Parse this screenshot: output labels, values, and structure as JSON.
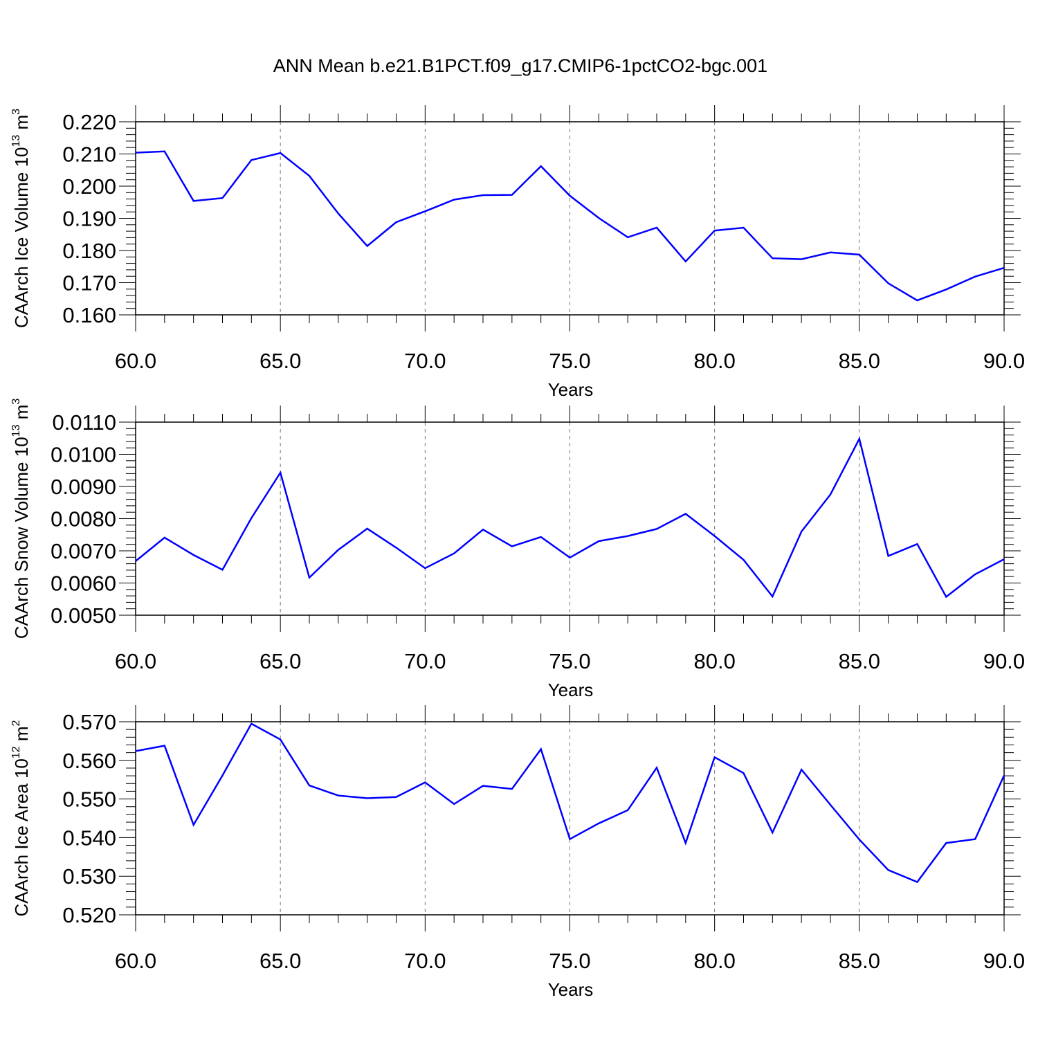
{
  "title": "ANN Mean b.e21.B1PCT.f09_g17.CMIP6-1pctCO2-bgc.001",
  "colors": {
    "line": "#0000ff",
    "grid": "#777777"
  },
  "chart_data": [
    {
      "type": "line",
      "xlabel": "Years",
      "ylabel": {
        "text": "CAArch Ice Volume 10",
        "exp": "13",
        "unit": " m",
        "unit_exp": "3"
      },
      "xlim": [
        60,
        90
      ],
      "ylim": [
        0.16,
        0.22
      ],
      "xticks": [
        "60.0",
        "65.0",
        "70.0",
        "75.0",
        "80.0",
        "85.0",
        "90.0"
      ],
      "yticks": [
        "0.160",
        "0.170",
        "0.180",
        "0.190",
        "0.200",
        "0.210",
        "0.220"
      ],
      "x": [
        60,
        61,
        62,
        63,
        64,
        65,
        66,
        67,
        68,
        69,
        70,
        71,
        72,
        73,
        74,
        75,
        76,
        77,
        78,
        79,
        80,
        81,
        82,
        83,
        84,
        85,
        86,
        87,
        88,
        89,
        90
      ],
      "values": [
        0.2104,
        0.2108,
        0.1954,
        0.1963,
        0.2081,
        0.2103,
        0.2032,
        0.1915,
        0.1814,
        0.1888,
        0.1922,
        0.1958,
        0.1972,
        0.1973,
        0.2062,
        0.197,
        0.1901,
        0.1841,
        0.1871,
        0.1766,
        0.1862,
        0.1871,
        0.1776,
        0.1773,
        0.1794,
        0.1787,
        0.1698,
        0.1645,
        0.1679,
        0.1719,
        0.1746
      ],
      "grid": "dashed vertical at major x ticks"
    },
    {
      "type": "line",
      "xlabel": "Years",
      "ylabel": {
        "text": "CAArch Snow Volume 10",
        "exp": "13",
        "unit": " m",
        "unit_exp": "3"
      },
      "xlim": [
        60,
        90
      ],
      "ylim": [
        0.005,
        0.011
      ],
      "xticks": [
        "60.0",
        "65.0",
        "70.0",
        "75.0",
        "80.0",
        "85.0",
        "90.0"
      ],
      "yticks": [
        "0.0050",
        "0.0060",
        "0.0070",
        "0.0080",
        "0.0090",
        "0.0100",
        "0.0110"
      ],
      "x": [
        60,
        61,
        62,
        63,
        64,
        65,
        66,
        67,
        68,
        69,
        70,
        71,
        72,
        73,
        74,
        75,
        76,
        77,
        78,
        79,
        80,
        81,
        82,
        83,
        84,
        85,
        86,
        87,
        88,
        89,
        90
      ],
      "values": [
        0.00668,
        0.00741,
        0.00687,
        0.00641,
        0.00802,
        0.00943,
        0.00617,
        0.00703,
        0.00769,
        0.0071,
        0.00646,
        0.00692,
        0.00766,
        0.00714,
        0.00743,
        0.00679,
        0.0073,
        0.00746,
        0.00768,
        0.00815,
        0.00746,
        0.00672,
        0.00558,
        0.0076,
        0.00875,
        0.01048,
        0.00684,
        0.00721,
        0.00557,
        0.00627,
        0.00674
      ],
      "grid": "dashed vertical at major x ticks"
    },
    {
      "type": "line",
      "xlabel": "Years",
      "ylabel": {
        "text": "CAArch Ice Area 10",
        "exp": "12",
        "unit": " m",
        "unit_exp": "2"
      },
      "xlim": [
        60,
        90
      ],
      "ylim": [
        0.52,
        0.57
      ],
      "xticks": [
        "60.0",
        "65.0",
        "70.0",
        "75.0",
        "80.0",
        "85.0",
        "90.0"
      ],
      "yticks": [
        "0.520",
        "0.530",
        "0.540",
        "0.550",
        "0.560",
        "0.570"
      ],
      "x": [
        60,
        61,
        62,
        63,
        64,
        65,
        66,
        67,
        68,
        69,
        70,
        71,
        72,
        73,
        74,
        75,
        76,
        77,
        78,
        79,
        80,
        81,
        82,
        83,
        84,
        85,
        86,
        87,
        88,
        89,
        90
      ],
      "values": [
        0.5624,
        0.5638,
        0.5433,
        0.5561,
        0.5695,
        0.5654,
        0.5535,
        0.5509,
        0.5502,
        0.5505,
        0.5543,
        0.5487,
        0.5534,
        0.5526,
        0.5629,
        0.5396,
        0.5437,
        0.5471,
        0.5581,
        0.5386,
        0.5608,
        0.5567,
        0.5413,
        0.5576,
        0.5485,
        0.5395,
        0.5316,
        0.5285,
        0.5386,
        0.5396,
        0.5561
      ],
      "grid": "dashed vertical at major x ticks"
    }
  ]
}
